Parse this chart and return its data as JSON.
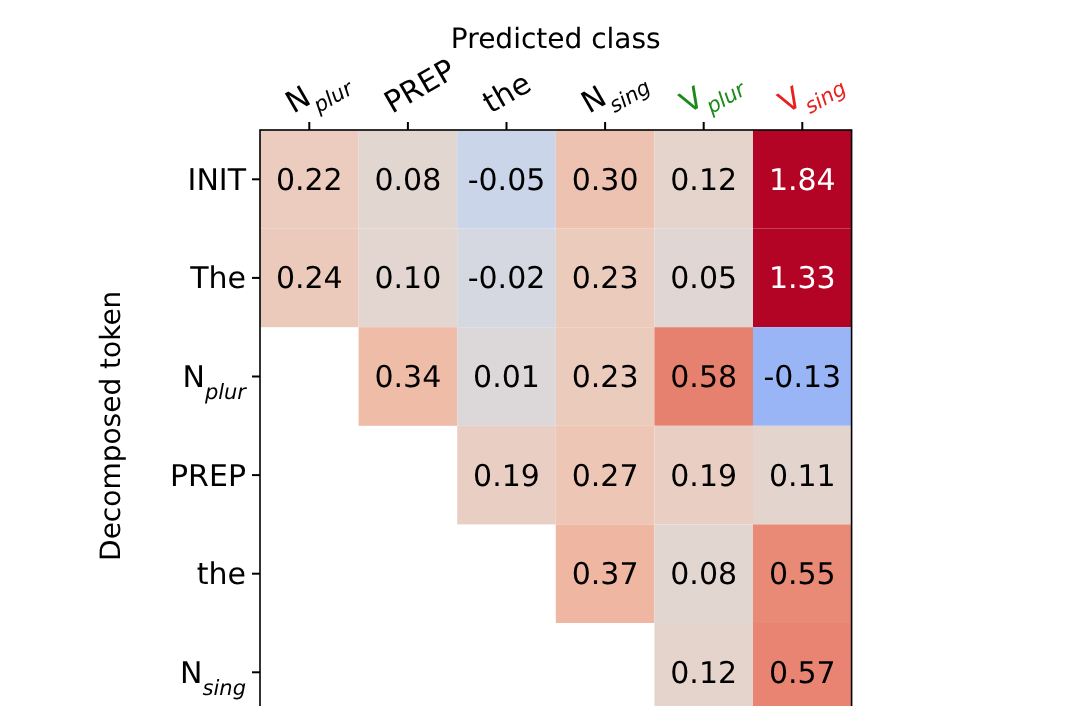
{
  "chart_data": {
    "type": "heatmap",
    "title": "Predicted class",
    "ylabel": "Decomposed token",
    "categories": [
      "N$_{plur}$",
      "PREP",
      "the",
      "N$_{sing}$",
      "V$_{plur}$",
      "V$_{sing}$"
    ],
    "y_categories": [
      "INIT",
      "The",
      "N$_{plur}$",
      "PREP",
      "the",
      "N$_{sing}$"
    ],
    "cells": [
      [
        0.22,
        0.08,
        -0.05,
        0.3,
        0.12,
        1.84
      ],
      [
        0.24,
        0.1,
        -0.02,
        0.23,
        0.05,
        1.33
      ],
      [
        null,
        0.34,
        0.01,
        0.23,
        0.58,
        -0.13
      ],
      [
        null,
        null,
        0.19,
        0.27,
        0.19,
        0.11
      ],
      [
        null,
        null,
        null,
        0.37,
        0.08,
        0.55
      ],
      [
        null,
        null,
        null,
        null,
        0.12,
        0.57
      ]
    ],
    "cell_labels": [
      [
        "0.22",
        "0.08",
        "-0.05",
        "0.30",
        "0.12",
        "1.84"
      ],
      [
        "0.24",
        "0.10",
        "-0.02",
        "0.23",
        "0.05",
        "1.33"
      ],
      [
        null,
        "0.34",
        "0.01",
        "0.23",
        "0.58",
        "-0.13"
      ],
      [
        null,
        null,
        "0.19",
        "0.27",
        "0.19",
        "0.11"
      ],
      [
        null,
        null,
        null,
        "0.37",
        "0.08",
        "0.55"
      ],
      [
        null,
        null,
        null,
        null,
        "0.12",
        "0.57"
      ]
    ]
  }
}
